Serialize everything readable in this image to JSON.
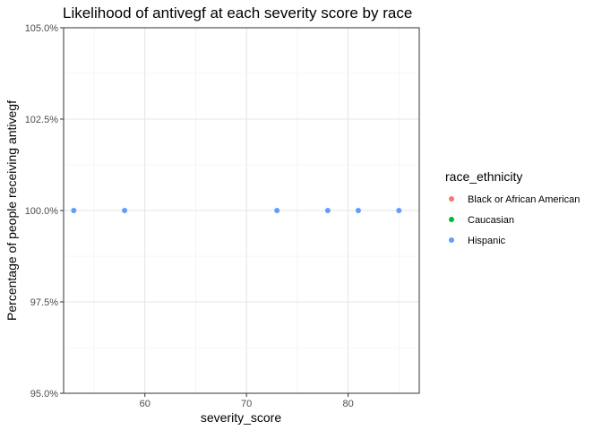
{
  "chart_data": {
    "type": "scatter",
    "title": "Likelihood of antivegf at each severity score by race",
    "xlabel": "severity_score",
    "ylabel": "Percentage of people receiving antivegf",
    "xlim": [
      52,
      87
    ],
    "ylim": [
      95.0,
      105.0
    ],
    "x_ticks": [
      60,
      70,
      80
    ],
    "y_ticks": [
      95.0,
      97.5,
      100.0,
      102.5,
      105.0
    ],
    "y_tick_labels": [
      "95.0%",
      "97.5%",
      "100.0%",
      "102.5%",
      "105.0%"
    ],
    "grid": true,
    "legend": {
      "title": "race_ethnicity",
      "placement": "right",
      "entries": [
        {
          "name": "Black or African American",
          "color": "#F8766D"
        },
        {
          "name": "Caucasian",
          "color": "#00BA38"
        },
        {
          "name": "Hispanic",
          "color": "#619CFF"
        }
      ]
    },
    "series": [
      {
        "name": "Black or African American",
        "color": "#F8766D",
        "points": []
      },
      {
        "name": "Caucasian",
        "color": "#00BA38",
        "points": []
      },
      {
        "name": "Hispanic",
        "color": "#619CFF",
        "points": [
          {
            "x": 53,
            "y": 100.0
          },
          {
            "x": 58,
            "y": 100.0
          },
          {
            "x": 73,
            "y": 100.0
          },
          {
            "x": 78,
            "y": 100.0
          },
          {
            "x": 81,
            "y": 100.0
          },
          {
            "x": 85,
            "y": 100.0
          }
        ]
      }
    ]
  }
}
